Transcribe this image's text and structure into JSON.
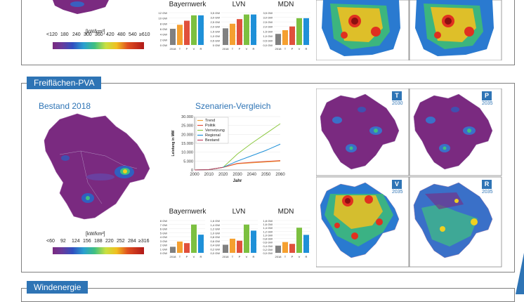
{
  "colors": {
    "accent": "#2e74b5",
    "trend": "#f0a030",
    "politik": "#e0503c",
    "vernetzung": "#8cc840",
    "regional": "#1e90d8",
    "bestand": "#c04060",
    "bar_base": "#808080",
    "bar_t": "#f5a030",
    "bar_p": "#e0503c",
    "bar_v": "#7cc040",
    "bar_r": "#1e90d8"
  },
  "top": {
    "unit": "[kW/km²]",
    "scale": [
      "<120",
      "180",
      "240",
      "300",
      "360",
      "420",
      "480",
      "540",
      "≥610"
    ],
    "charts": [
      {
        "title": "Bayernwerk",
        "yticks": [
          "12 GW",
          "10 GW",
          "8 GW",
          "6 GW",
          "4 GW",
          "2 GW",
          "0 GW"
        ]
      },
      {
        "title": "LVN",
        "yticks": [
          "3,5 GW",
          "3,0 GW",
          "2,5 GW",
          "2,0 GW",
          "1,5 GW",
          "1,0 GW",
          "0,5 GW",
          "0 GW"
        ]
      },
      {
        "title": "MDN",
        "yticks": [
          "3,5 GW",
          "3,0 GW",
          "2,5 GW",
          "2,0 GW",
          "1,5 GW",
          "1,0 GW",
          "0,5 GW",
          "0,0 GW"
        ]
      }
    ],
    "bar_xlabels": [
      "2018",
      "T",
      "P",
      "V",
      "R"
    ]
  },
  "pva": {
    "section": "Freiflächen-PVA",
    "bestand_title": "Bestand 2018",
    "vergleich_title": "Szenarien-Vergleich",
    "unit": "[kW/km²]",
    "scale": [
      "<60",
      "92",
      "124",
      "156",
      "188",
      "220",
      "252",
      "284",
      "≥316"
    ],
    "charts": [
      {
        "title": "Bayernwerk",
        "yticks": [
          "8 GW",
          "7 GW",
          "6 GW",
          "5 GW",
          "4 GW",
          "3 GW",
          "2 GW",
          "1 GW",
          "0 GW"
        ]
      },
      {
        "title": "LVN",
        "yticks": [
          "1,6 GW",
          "1,4 GW",
          "1,2 GW",
          "1,0 GW",
          "0,8 GW",
          "0,6 GW",
          "0,4 GW",
          "0,2 GW",
          "0,0 GW"
        ]
      },
      {
        "title": "MDN",
        "yticks": [
          "1,8 GW",
          "1,6 GW",
          "1,4 GW",
          "1,2 GW",
          "1,0 GW",
          "0,8 GW",
          "0,6 GW",
          "0,4 GW",
          "0,2 GW",
          "0,0 GW"
        ]
      }
    ],
    "bar_xlabels": [
      "2018",
      "T",
      "P",
      "V",
      "R"
    ],
    "scenarios": [
      {
        "letter": "T",
        "year": "2030"
      },
      {
        "letter": "P",
        "year": "2035"
      },
      {
        "letter": "V",
        "year": "2035"
      },
      {
        "letter": "R",
        "year": "2035"
      }
    ]
  },
  "chart_data": [
    {
      "type": "line",
      "title": "Szenarien-Vergleich",
      "xlabel": "Jahr",
      "ylabel": "Leistung in MW",
      "xlim": [
        2000,
        2060
      ],
      "ylim": [
        0,
        30000
      ],
      "xticks": [
        "2000",
        "2010",
        "2020",
        "2030",
        "2040",
        "2050",
        "2060"
      ],
      "yticks": [
        "30.000",
        "25.000",
        "20.000",
        "15.000",
        "10.000",
        "5.000",
        "0"
      ],
      "series": [
        {
          "name": "Trend",
          "x": [
            2000,
            2010,
            2020,
            2030,
            2040,
            2050,
            2060
          ],
          "y": [
            0,
            200,
            1500,
            3500,
            4000,
            4500,
            5000
          ]
        },
        {
          "name": "Politik",
          "x": [
            2000,
            2010,
            2020,
            2030,
            2040,
            2050,
            2060
          ],
          "y": [
            0,
            200,
            1500,
            3700,
            4300,
            4800,
            5300
          ]
        },
        {
          "name": "Vernetzung",
          "x": [
            2000,
            2010,
            2020,
            2030,
            2040,
            2050,
            2060
          ],
          "y": [
            0,
            200,
            1500,
            9000,
            15000,
            20500,
            26000
          ]
        },
        {
          "name": "Regional",
          "x": [
            2000,
            2010,
            2020,
            2030,
            2040,
            2050,
            2060
          ],
          "y": [
            0,
            200,
            1500,
            5000,
            8000,
            11000,
            14500
          ]
        },
        {
          "name": "Bestand",
          "x": [
            2000,
            2010,
            2020
          ],
          "y": [
            0,
            200,
            1500
          ]
        }
      ]
    },
    {
      "type": "bar",
      "title": "Bayernwerk",
      "categories": [
        "2018",
        "T",
        "P",
        "V",
        "R"
      ],
      "values": [
        6,
        7.5,
        9,
        11,
        11
      ],
      "ylim": [
        0,
        12
      ]
    },
    {
      "type": "bar",
      "title": "LVN",
      "categories": [
        "2018",
        "T",
        "P",
        "V",
        "R"
      ],
      "values": [
        1.8,
        2.3,
        2.8,
        3.3,
        3.3
      ],
      "ylim": [
        0,
        3.5
      ]
    },
    {
      "type": "bar",
      "title": "MDN",
      "categories": [
        "2018",
        "T",
        "P",
        "V",
        "R"
      ],
      "values": [
        1.2,
        1.6,
        2.0,
        2.9,
        2.9
      ],
      "ylim": [
        0,
        3.5
      ]
    },
    {
      "type": "bar",
      "title": "Bayernwerk",
      "categories": [
        "2018",
        "T",
        "P",
        "V",
        "R"
      ],
      "values": [
        1.5,
        2.8,
        2.4,
        7.0,
        4.5
      ],
      "ylim": [
        0,
        8
      ]
    },
    {
      "type": "bar",
      "title": "LVN",
      "categories": [
        "2018",
        "T",
        "P",
        "V",
        "R"
      ],
      "values": [
        0.4,
        0.7,
        0.6,
        1.4,
        1.1
      ],
      "ylim": [
        0,
        1.6
      ]
    },
    {
      "type": "bar",
      "title": "MDN",
      "categories": [
        "2018",
        "T",
        "P",
        "V",
        "R"
      ],
      "values": [
        0.4,
        0.6,
        0.5,
        1.4,
        1.0
      ],
      "ylim": [
        0,
        1.8
      ]
    }
  ],
  "wind": {
    "section": "Windenergie"
  }
}
